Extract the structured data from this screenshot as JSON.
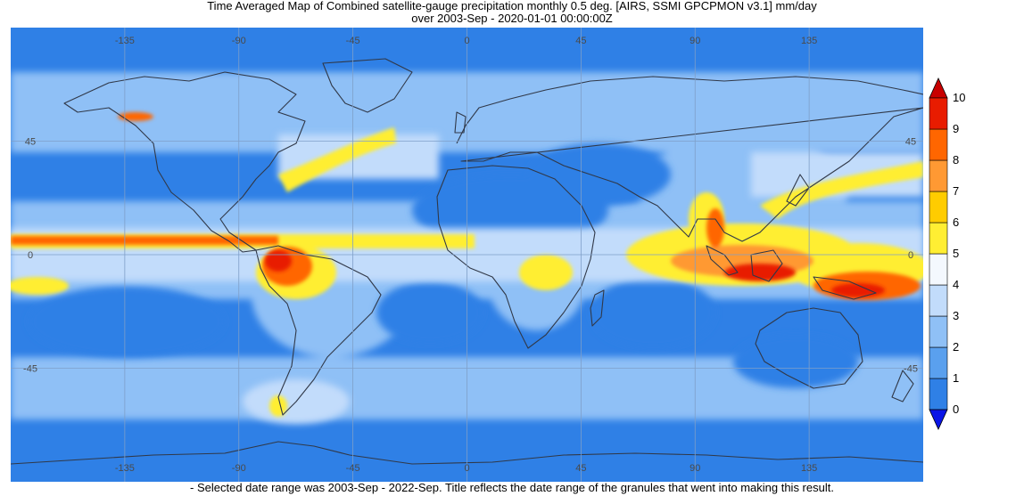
{
  "title": {
    "line1": "Time Averaged Map of Combined satellite-gauge precipitation monthly 0.5 deg. [AIRS, SSMI GPCPMON v3.1] mm/day",
    "line2": "over 2003-Sep - 2020-01-01 00:00:00Z"
  },
  "footnote": "- Selected date range was 2003-Sep - 2022-Sep. Title reflects the date range of the granules that went into making this result.",
  "map": {
    "lon_range": [
      -180,
      180
    ],
    "lat_range": [
      -90,
      90
    ],
    "lon_ticks": [
      {
        "value": -135,
        "label": "-135"
      },
      {
        "value": -90,
        "label": "-90"
      },
      {
        "value": -45,
        "label": "-45"
      },
      {
        "value": 0,
        "label": "0"
      },
      {
        "value": 45,
        "label": "45"
      },
      {
        "value": 90,
        "label": "90"
      },
      {
        "value": 135,
        "label": "135"
      }
    ],
    "lat_ticks": [
      {
        "value": 45,
        "label": "45"
      },
      {
        "value": 0,
        "label": "0"
      },
      {
        "value": -45,
        "label": "-45"
      }
    ],
    "grid": true,
    "colors": {
      "ocean_background": "#2f80e6",
      "grid": "#7f9fc8",
      "coast": "#303848"
    }
  },
  "legend": {
    "unit": "mm/day",
    "labels": [
      "0",
      "1",
      "2",
      "3",
      "4",
      "5",
      "6",
      "7",
      "8",
      "9",
      "10"
    ],
    "colors": [
      "#2f80e6",
      "#5aa0ee",
      "#8fc0f6",
      "#c2dcfb",
      "#f4f8fe",
      "#ffee33",
      "#ffcc00",
      "#ff9933",
      "#ff6600",
      "#e81c00"
    ],
    "under_color": "#0a14e6",
    "over_color": "#c80000"
  }
}
